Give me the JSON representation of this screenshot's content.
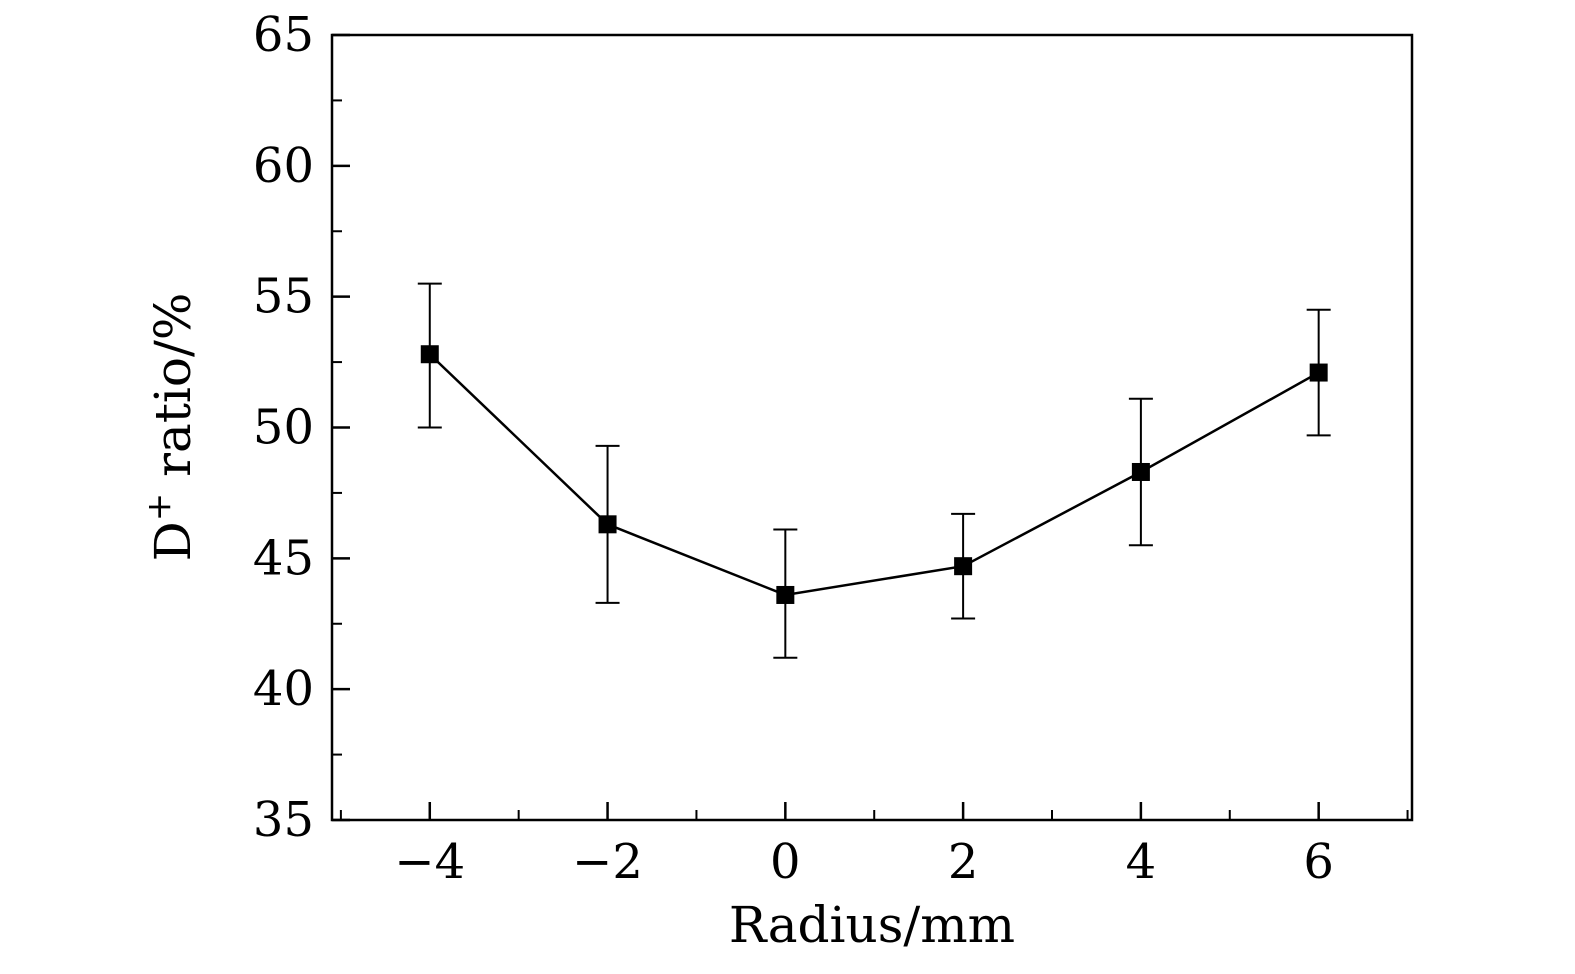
{
  "chart_data": {
    "type": "line",
    "title": "",
    "xlabel": "Radius/mm",
    "ylabel": "D+ ratio/%",
    "ylabel_parts": {
      "pre": "D",
      "sup": "+",
      "post": " ratio/%"
    },
    "xlim": [
      -5.1,
      7.05
    ],
    "ylim": [
      35,
      65
    ],
    "x_ticks": [
      -4,
      -2,
      0,
      2,
      4,
      6
    ],
    "y_ticks": [
      35,
      40,
      45,
      50,
      55,
      60,
      65
    ],
    "x_minor_step": 1,
    "y_minor_step": 2.5,
    "grid": false,
    "legend": "none",
    "frame": "box",
    "tick_direction": "in",
    "colors": {
      "line": "#000000",
      "marker": "#000000",
      "frame": "#000000"
    },
    "series": [
      {
        "name": "D+ ratio",
        "marker": "filled-square",
        "color": "#000000",
        "x": [
          -4,
          -2,
          0,
          2,
          4,
          6
        ],
        "y": [
          52.8,
          46.3,
          43.6,
          44.7,
          48.3,
          52.1
        ],
        "err_plus": [
          2.7,
          3.0,
          2.5,
          2.0,
          2.8,
          2.4
        ],
        "err_minus": [
          2.8,
          3.0,
          2.4,
          2.0,
          2.8,
          2.4
        ]
      }
    ]
  }
}
